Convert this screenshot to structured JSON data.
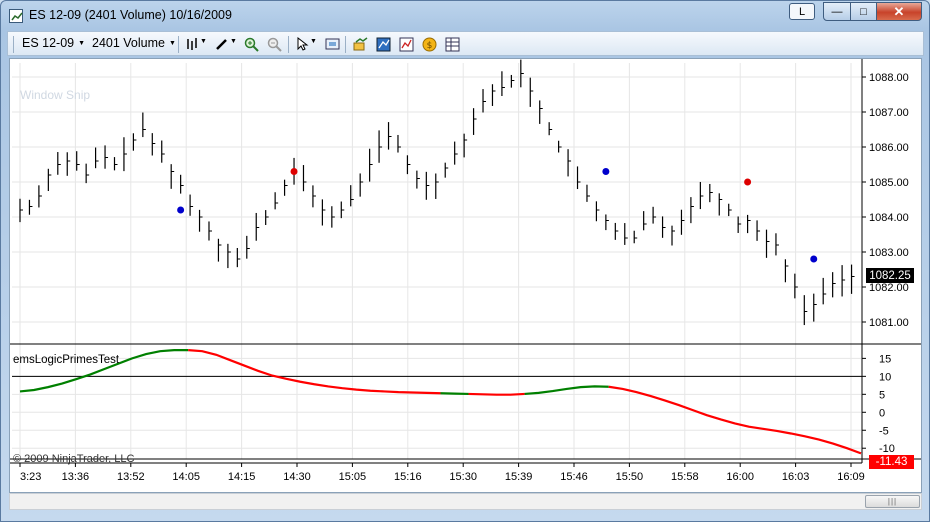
{
  "window": {
    "title": "ES 12-09 (2401 Volume)  10/16/2009",
    "btn_l": "L",
    "btn_min": "—",
    "btn_max": "□",
    "btn_close": "✕"
  },
  "toolbar": {
    "instrument": "ES 12-09",
    "period": "2401 Volume",
    "icons": [
      "bars-icon",
      "pencil-icon",
      "zoom-in-icon",
      "zoom-out-icon",
      "cursor-icon",
      "snapshot-icon",
      "indicators-icon",
      "strategies-icon",
      "chart-properties-icon",
      "coin-icon",
      "data-box-icon"
    ]
  },
  "overlay": {
    "snip": "Window Snip"
  },
  "panel": {
    "indicator_name": "emsLogicPrimesTest",
    "copyright": "© 2009 NinjaTrader, LLC",
    "last_price": "1082.25",
    "indicator_value": "-11.43"
  },
  "colors": {
    "up": "#008000",
    "down": "#ff0000",
    "marker_buy": "#0000cc",
    "marker_sell": "#dd0000"
  },
  "chart_data": [
    {
      "type": "line",
      "subtype": "hlc-bars",
      "title": "",
      "x_ticks": [
        "3:23",
        "13:36",
        "13:52",
        "14:05",
        "14:15",
        "14:30",
        "15:05",
        "15:16",
        "15:30",
        "15:39",
        "15:46",
        "15:50",
        "15:58",
        "16:00",
        "16:03",
        "16:09"
      ],
      "y_ticks": [
        1081.0,
        1082.0,
        1083.0,
        1084.0,
        1085.0,
        1086.0,
        1087.0,
        1088.0
      ],
      "ylim": [
        1080.4,
        1088.4
      ],
      "close": [
        1084.2,
        1084.3,
        1084.6,
        1085.2,
        1085.5,
        1085.6,
        1085.5,
        1085.2,
        1085.6,
        1085.7,
        1085.5,
        1085.8,
        1086.2,
        1086.5,
        1086.1,
        1085.8,
        1085.3,
        1084.9,
        1084.3,
        1084.0,
        1083.6,
        1083.2,
        1083.0,
        1082.8,
        1083.1,
        1083.7,
        1084.0,
        1084.4,
        1084.9,
        1085.3,
        1085.0,
        1084.6,
        1084.2,
        1084.0,
        1084.2,
        1084.5,
        1085.0,
        1085.5,
        1086.0,
        1086.3,
        1086.0,
        1085.5,
        1085.1,
        1084.9,
        1085.0,
        1085.4,
        1085.8,
        1086.2,
        1086.8,
        1087.3,
        1087.6,
        1087.7,
        1087.9,
        1088.1,
        1087.6,
        1087.1,
        1086.5,
        1086.0,
        1085.6,
        1085.0,
        1084.6,
        1084.2,
        1083.9,
        1083.6,
        1083.4,
        1083.4,
        1083.8,
        1084.0,
        1083.7,
        1083.6,
        1083.9,
        1084.3,
        1084.6,
        1084.7,
        1084.5,
        1084.2,
        1083.8,
        1083.9,
        1083.6,
        1083.3,
        1083.2,
        1082.6,
        1082.0,
        1081.3,
        1081.5,
        1081.8,
        1082.1,
        1082.2,
        1082.3
      ],
      "markers": [
        {
          "x_index": 17,
          "y": 1084.2,
          "kind": "buy"
        },
        {
          "x_index": 29,
          "y": 1085.3,
          "kind": "sell"
        },
        {
          "x_index": 62,
          "y": 1085.3,
          "kind": "buy"
        },
        {
          "x_index": 77,
          "y": 1085.0,
          "kind": "sell"
        },
        {
          "x_index": 84,
          "y": 1082.8,
          "kind": "buy"
        }
      ]
    },
    {
      "type": "line",
      "title": "emsLogicPrimesTest",
      "y_ticks": [
        15,
        10,
        5,
        0,
        -5,
        -10
      ],
      "ylim": [
        -13,
        19
      ],
      "values": [
        5.8,
        6.2,
        7.0,
        8.0,
        9.2,
        10.5,
        12.0,
        13.5,
        15.0,
        16.2,
        17.0,
        17.3,
        17.3,
        17.0,
        16.0,
        14.5,
        13.0,
        11.5,
        10.2,
        9.3,
        8.5,
        7.8,
        7.2,
        6.7,
        6.3,
        6.0,
        5.8,
        5.6,
        5.5,
        5.4,
        5.3,
        5.2,
        5.1,
        5.0,
        4.9,
        4.9,
        5.1,
        5.4,
        5.9,
        6.5,
        7.0,
        7.2,
        7.1,
        6.5,
        5.6,
        4.5,
        3.3,
        2.0,
        0.6,
        -0.8,
        -2.0,
        -3.1,
        -4.0,
        -4.6,
        -5.2,
        -5.9,
        -6.7,
        -7.6,
        -8.7,
        -10.0,
        -11.43
      ],
      "color_segments": [
        {
          "from": 0,
          "to": 12,
          "color": "up"
        },
        {
          "from": 12,
          "to": 30,
          "color": "down"
        },
        {
          "from": 30,
          "to": 32,
          "color": "up"
        },
        {
          "from": 32,
          "to": 36,
          "color": "down"
        },
        {
          "from": 36,
          "to": 42,
          "color": "up"
        },
        {
          "from": 42,
          "to": 60,
          "color": "down"
        }
      ]
    }
  ]
}
